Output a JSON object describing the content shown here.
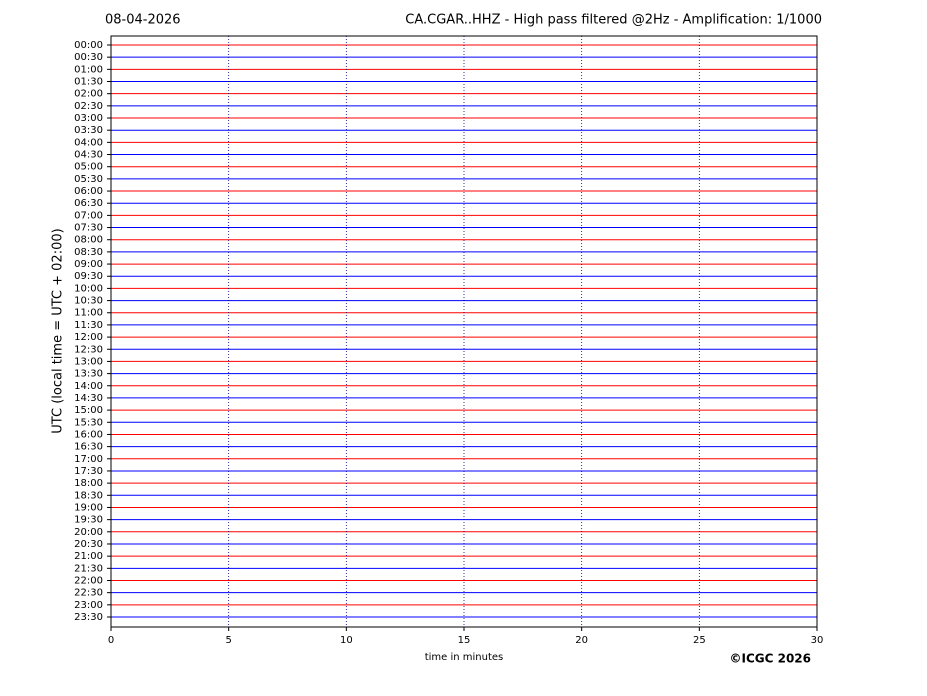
{
  "chart_data": {
    "type": "helicorder",
    "title_left": "08-04-2026",
    "title": "CA.CGAR..HHZ - High pass filtered @2Hz - Amplification: 1/1000",
    "y_label": "UTC (local time = UTC + 02:00)",
    "x_label": "time in minutes",
    "copyright": "©ICGC 2026",
    "categories": [
      "00:00",
      "00:30",
      "01:00",
      "01:30",
      "02:00",
      "02:30",
      "03:00",
      "03:30",
      "04:00",
      "04:30",
      "05:00",
      "05:30",
      "06:00",
      "06:30",
      "07:00",
      "07:30",
      "08:00",
      "08:30",
      "09:00",
      "09:30",
      "10:00",
      "10:30",
      "11:00",
      "11:30",
      "12:00",
      "12:30",
      "13:00",
      "13:30",
      "14:00",
      "14:30",
      "15:00",
      "15:30",
      "16:00",
      "16:30",
      "17:00",
      "17:30",
      "18:00",
      "18:30",
      "19:00",
      "19:30",
      "20:00",
      "20:30",
      "21:00",
      "21:30",
      "22:00",
      "22:30",
      "23:00",
      "23:30"
    ],
    "trace_colors": [
      "#ff0000",
      "#0000ff"
    ],
    "xlim": [
      0,
      30
    ],
    "xticks": [
      0,
      5,
      10,
      15,
      20,
      25,
      30
    ],
    "grid": true,
    "grid_color": "#000080"
  }
}
